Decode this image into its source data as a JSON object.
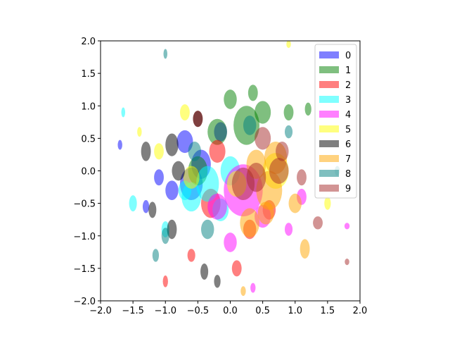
{
  "chart_data": {
    "type": "ellipse-scatter",
    "xlim": [
      -2,
      2
    ],
    "ylim": [
      -2,
      2
    ],
    "xticks": [
      {
        "value": -2,
        "label": "−2.0"
      },
      {
        "value": -1.5,
        "label": "−1.5"
      },
      {
        "value": -1,
        "label": "−1.0"
      },
      {
        "value": -0.5,
        "label": "−0.5"
      },
      {
        "value": 0,
        "label": "0.0"
      },
      {
        "value": 0.5,
        "label": "0.5"
      },
      {
        "value": 1,
        "label": "1.0"
      },
      {
        "value": 1.5,
        "label": "1.5"
      },
      {
        "value": 2,
        "label": "2.0"
      }
    ],
    "yticks": [
      {
        "value": -2,
        "label": "−2.0"
      },
      {
        "value": -1.5,
        "label": "−1.5"
      },
      {
        "value": -1,
        "label": "−1.0"
      },
      {
        "value": -0.5,
        "label": "−0.5"
      },
      {
        "value": 0,
        "label": "0.0"
      },
      {
        "value": 0.5,
        "label": "0.5"
      },
      {
        "value": 1,
        "label": "1.0"
      },
      {
        "value": 1.5,
        "label": "1.5"
      },
      {
        "value": 2,
        "label": "2.0"
      }
    ],
    "legend": "upper right",
    "series": [
      {
        "name": "0",
        "color": "blue",
        "x": [
          -0.45,
          -0.9,
          -1.1,
          -0.7,
          -1.3,
          -0.15,
          -1.7,
          -0.6
        ],
        "y": [
          0.1,
          -0.3,
          -0.1,
          0.45,
          -0.55,
          0.6,
          0.4,
          -0.2
        ],
        "widths": [
          0.3,
          0.2,
          0.15,
          0.25,
          0.1,
          0.2,
          0.07,
          0.35
        ],
        "heights": [
          0.45,
          0.3,
          0.25,
          0.35,
          0.2,
          0.3,
          0.15,
          0.5
        ]
      },
      {
        "name": "1",
        "color": "green",
        "x": [
          0.25,
          0.0,
          -0.2,
          0.5,
          0.9,
          -0.5,
          0.35,
          1.2
        ],
        "y": [
          0.7,
          1.1,
          0.6,
          0.9,
          0.9,
          0.0,
          1.2,
          0.95
        ],
        "widths": [
          0.4,
          0.2,
          0.3,
          0.25,
          0.15,
          0.3,
          0.15,
          0.1
        ],
        "heights": [
          0.6,
          0.3,
          0.4,
          0.35,
          0.25,
          0.45,
          0.25,
          0.2
        ]
      },
      {
        "name": "2",
        "color": "red",
        "x": [
          -0.3,
          0.3,
          -0.5,
          0.1,
          -1.0,
          -0.2,
          0.6,
          -0.6
        ],
        "y": [
          -0.5,
          -0.9,
          0.8,
          -1.5,
          -1.7,
          0.3,
          -0.6,
          -1.3
        ],
        "widths": [
          0.3,
          0.2,
          0.15,
          0.15,
          0.08,
          0.25,
          0.2,
          0.12
        ],
        "heights": [
          0.45,
          0.3,
          0.25,
          0.25,
          0.18,
          0.35,
          0.3,
          0.2
        ]
      },
      {
        "name": "3",
        "color": "cyan",
        "x": [
          -0.6,
          -0.35,
          -0.15,
          -1.0,
          -0.7,
          -1.5,
          0.0,
          -1.65
        ],
        "y": [
          -0.4,
          -0.2,
          -0.6,
          -0.9,
          -0.3,
          -0.5,
          0.0,
          0.9
        ],
        "widths": [
          0.3,
          0.35,
          0.25,
          0.12,
          0.2,
          0.12,
          0.3,
          0.06
        ],
        "heights": [
          0.45,
          0.55,
          0.35,
          0.25,
          0.3,
          0.25,
          0.45,
          0.15
        ]
      },
      {
        "name": "4",
        "color": "magenta",
        "x": [
          0.2,
          0.0,
          0.5,
          0.9,
          1.1,
          -0.2,
          0.35,
          1.8
        ],
        "y": [
          -0.3,
          -1.1,
          -0.7,
          -0.9,
          -0.4,
          -0.55,
          -1.8,
          -0.85
        ],
        "widths": [
          0.6,
          0.2,
          0.25,
          0.12,
          0.15,
          0.3,
          0.08,
          0.08
        ],
        "heights": [
          0.8,
          0.3,
          0.35,
          0.2,
          0.25,
          0.4,
          0.15,
          0.1
        ]
      },
      {
        "name": "5",
        "color": "yellow",
        "x": [
          0.7,
          -0.6,
          -1.1,
          0.1,
          -0.7,
          1.5,
          -1.4,
          0.9
        ],
        "y": [
          0.0,
          -0.1,
          0.3,
          -0.2,
          0.9,
          -0.5,
          0.6,
          1.95
        ],
        "widths": [
          0.4,
          0.25,
          0.15,
          0.3,
          0.15,
          0.1,
          0.07,
          0.07
        ],
        "heights": [
          0.55,
          0.35,
          0.25,
          0.4,
          0.25,
          0.2,
          0.15,
          0.12
        ]
      },
      {
        "name": "6",
        "color": "black",
        "x": [
          -0.9,
          -0.8,
          -1.3,
          -0.9,
          -1.2,
          -0.2,
          -0.4,
          -0.5
        ],
        "y": [
          0.4,
          0.0,
          0.3,
          -0.9,
          -0.6,
          -1.7,
          -1.55,
          0.8
        ],
        "widths": [
          0.2,
          0.2,
          0.15,
          0.15,
          0.12,
          0.1,
          0.12,
          0.15
        ],
        "heights": [
          0.35,
          0.3,
          0.3,
          0.3,
          0.25,
          0.2,
          0.25,
          0.25
        ]
      },
      {
        "name": "7",
        "color": "orange",
        "x": [
          0.6,
          0.3,
          0.7,
          0.4,
          1.15,
          1.0,
          0.55,
          0.2
        ],
        "y": [
          -0.3,
          -0.8,
          0.2,
          0.1,
          -1.2,
          -0.5,
          -0.65,
          -1.85
        ],
        "widths": [
          0.4,
          0.3,
          0.35,
          0.3,
          0.15,
          0.2,
          0.25,
          0.08
        ],
        "heights": [
          0.6,
          0.45,
          0.5,
          0.45,
          0.3,
          0.3,
          0.35,
          0.15
        ]
      },
      {
        "name": "8",
        "color": "teal",
        "x": [
          -0.35,
          0.3,
          -1.15,
          -1.0,
          -0.55,
          0.9,
          -1.0,
          1.65
        ],
        "y": [
          -0.9,
          0.7,
          -1.3,
          1.8,
          0.3,
          0.6,
          -1.0,
          0.0
        ],
        "widths": [
          0.2,
          0.2,
          0.1,
          0.06,
          0.2,
          0.12,
          0.12,
          0.08
        ],
        "heights": [
          0.3,
          0.3,
          0.2,
          0.15,
          0.3,
          0.2,
          0.25,
          0.15
        ]
      },
      {
        "name": "9",
        "color": "brown",
        "x": [
          0.2,
          0.75,
          0.5,
          1.1,
          0.4,
          1.35,
          1.8,
          0.8
        ],
        "y": [
          -0.2,
          0.0,
          0.5,
          -0.1,
          -0.1,
          -0.8,
          -1.4,
          0.3
        ],
        "widths": [
          0.35,
          0.3,
          0.25,
          0.15,
          0.3,
          0.15,
          0.07,
          0.2
        ],
        "heights": [
          0.5,
          0.4,
          0.35,
          0.25,
          0.45,
          0.2,
          0.1,
          0.3
        ]
      }
    ]
  }
}
